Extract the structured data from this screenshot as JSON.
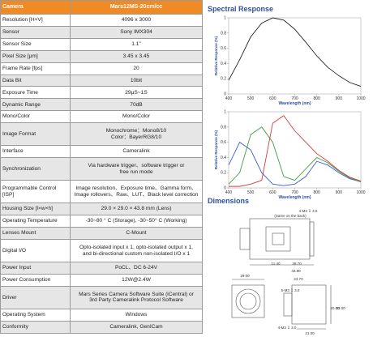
{
  "table": {
    "header": [
      "Camera",
      "Mars12MS-20cm/cc"
    ],
    "rows": [
      {
        "label": "Resolution [H×V]",
        "value": [
          "4096 x 3000"
        ]
      },
      {
        "label": "Sensor",
        "value": [
          "Sony IMX304"
        ]
      },
      {
        "label": "Sensor Size",
        "value": [
          "1.1\""
        ]
      },
      {
        "label": "Pixel Size [μm]",
        "value": [
          "3.45 x 3.45"
        ]
      },
      {
        "label": "Frame Rate [fps]",
        "value": [
          "20"
        ]
      },
      {
        "label": "Data Bit",
        "value": [
          "10bit"
        ]
      },
      {
        "label": "Exposure Time",
        "value": [
          "29μS~1S"
        ]
      },
      {
        "label": "Dynamic Range",
        "value": [
          "70dB"
        ]
      },
      {
        "label": "Mono/Color",
        "value": [
          "Mono/Color"
        ]
      },
      {
        "label": "Image Format",
        "value": [
          "Monochrome：Mono8/10",
          "Color：BayerRG8/10"
        ]
      },
      {
        "label": "Interface",
        "value": [
          "Cameralink"
        ]
      },
      {
        "label": "Synchronization",
        "value": [
          "Via hardware trigger、software trigger or",
          "free run mode"
        ]
      },
      {
        "label": "Programmable Control [ISP]",
        "value": [
          "Image resolution、Exposure time、Gamma form、",
          "Image rollovers、Raw、LUT、Black level correction"
        ]
      },
      {
        "label": "Housing Size [l×w×h]",
        "value": [
          "29.0 × 29.0 × 43.8 mm (Lens)"
        ]
      },
      {
        "label": "Operating Temperature",
        "value": [
          "-30~80 ° C (Storage), -30~50° C (Working)"
        ]
      },
      {
        "label": "Lenses Mount",
        "value": [
          "C-Mount"
        ]
      },
      {
        "label": "Digital I/O",
        "value": [
          "Opto-isolated input x 1, opto-isolated output x 1,",
          "and bi-directional custom non-isolated I/O x 1"
        ]
      },
      {
        "label": "Power Input",
        "value": [
          "PoCL、DC 6-24V"
        ]
      },
      {
        "label": "Power Consumption",
        "value": [
          "12W@2.4W"
        ]
      },
      {
        "label": "Driver",
        "value": [
          "Mars Series Camera Software Suite (iCentral) or",
          "3rd Party Cameralink Protocol Software"
        ]
      },
      {
        "label": "Operating System",
        "value": [
          "Windows"
        ]
      },
      {
        "label": "Conformity",
        "value": [
          "Cameralink, GenICam"
        ]
      }
    ]
  },
  "spectral": {
    "title": "Spectral Response",
    "charts": [
      {
        "type": "line",
        "xlabel": "Wavelength (nm)",
        "ylabel": "Relative Response (%)",
        "x": [
          400,
          450,
          500,
          550,
          600,
          650,
          700,
          750,
          800,
          850,
          900,
          950,
          1000
        ],
        "xlim": [
          400,
          1000
        ],
        "ylim": [
          0,
          1
        ],
        "xticks": [
          400,
          500,
          600,
          700,
          800,
          900,
          1000
        ],
        "yticks": [
          0,
          0.2,
          0.4,
          0.6,
          0.8,
          1
        ],
        "series": [
          {
            "color": "#222222",
            "values": [
              0.18,
              0.45,
              0.75,
              0.93,
              1.0,
              0.97,
              0.85,
              0.68,
              0.5,
              0.35,
              0.24,
              0.15,
              0.1
            ]
          }
        ]
      },
      {
        "type": "line",
        "xlabel": "Wavelength (nm)",
        "ylabel": "Relative Response (%)",
        "x": [
          400,
          450,
          500,
          550,
          600,
          650,
          700,
          750,
          800,
          850,
          900,
          950,
          1000
        ],
        "xlim": [
          400,
          1000
        ],
        "ylim": [
          0,
          1
        ],
        "xticks": [
          400,
          500,
          600,
          700,
          800,
          900,
          1000
        ],
        "yticks": [
          0,
          0.2,
          0.4,
          0.6,
          0.8,
          1
        ],
        "series": [
          {
            "color": "#3b5bd6",
            "values": [
              0.3,
              0.6,
              0.5,
              0.2,
              0.05,
              0.03,
              0.05,
              0.15,
              0.35,
              0.3,
              0.2,
              0.12,
              0.08
            ]
          },
          {
            "color": "#3aa043",
            "values": [
              0.05,
              0.2,
              0.7,
              0.8,
              0.6,
              0.15,
              0.1,
              0.25,
              0.4,
              0.33,
              0.22,
              0.13,
              0.08
            ]
          },
          {
            "color": "#d93a3a",
            "values": [
              0.02,
              0.02,
              0.05,
              0.1,
              0.85,
              0.95,
              0.75,
              0.6,
              0.45,
              0.35,
              0.23,
              0.14,
              0.09
            ]
          }
        ]
      }
    ]
  },
  "dimensions": {
    "title": "Dimensions",
    "labels": [
      "4-M3 ↧ 3.0",
      "(Same on the back)",
      "43.80",
      "38.70",
      "11.40",
      "29.00",
      "5-M3 ↧ 3.0",
      "23.70",
      "4-M3 ↧ 3.0",
      "21.00",
      "20.00",
      "22.00"
    ]
  }
}
